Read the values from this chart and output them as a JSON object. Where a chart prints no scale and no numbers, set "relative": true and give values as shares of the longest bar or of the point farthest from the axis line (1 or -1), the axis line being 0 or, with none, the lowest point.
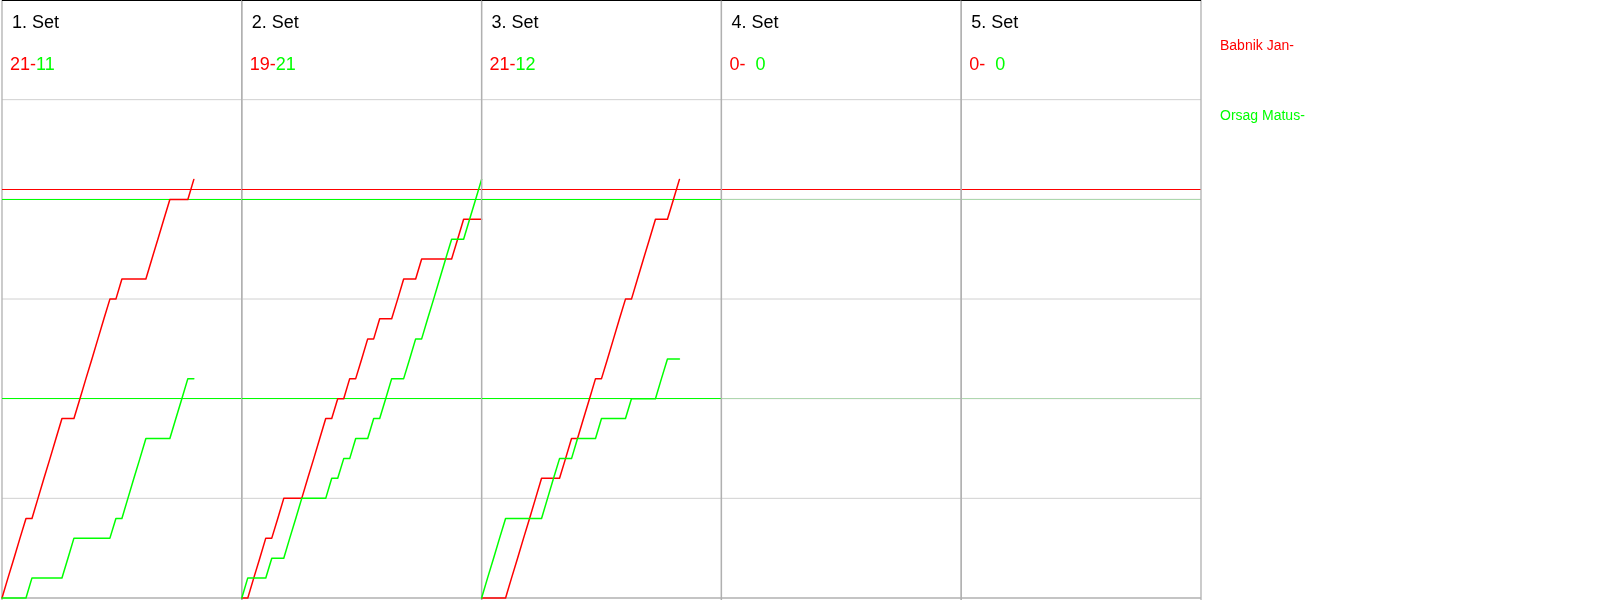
{
  "chart_data": [
    {
      "type": "line",
      "title": "1. Set",
      "subtitle": "21-11",
      "relative": true,
      "grid": "y",
      "line_style": "solid",
      "categories": [
        null,
        null,
        null,
        null,
        null,
        null,
        null,
        null,
        null,
        null,
        null,
        null,
        null,
        null,
        null,
        null,
        null,
        null,
        null,
        null,
        null,
        null,
        null,
        null,
        null,
        null,
        null,
        null,
        null,
        null,
        null,
        null,
        null,
        null,
        null,
        null,
        null,
        null,
        null,
        null,
        null
      ],
      "ref_lines": [
        {
          "axis": "y",
          "value": 0.976,
          "color": "#ff0000"
        },
        {
          "axis": "y",
          "value": 0.952,
          "color": "#00ff00"
        },
        {
          "axis": "y",
          "value": 0.476,
          "color": "#00ff00"
        }
      ],
      "series": [
        {
          "name": "Babnik Jan-",
          "color": "#ff0000",
          "values": [
            0,
            0.048,
            0.095,
            0.143,
            0.19,
            0.19,
            0.238,
            0.286,
            0.333,
            0.381,
            0.429,
            0.429,
            0.429,
            0.476,
            0.524,
            0.571,
            0.619,
            0.667,
            0.714,
            0.714,
            0.762,
            0.762,
            0.762,
            0.762,
            0.762,
            0.81,
            0.857,
            0.905,
            0.952,
            0.952,
            0.952,
            0.952,
            1,
            null,
            null,
            null,
            null,
            null,
            null,
            null,
            null
          ]
        },
        {
          "name": "Orsag Matus-",
          "color": "#00ff00",
          "values": [
            0,
            0,
            0,
            0,
            0,
            0.048,
            0.048,
            0.048,
            0.048,
            0.048,
            0.048,
            0.095,
            0.143,
            0.143,
            0.143,
            0.143,
            0.143,
            0.143,
            0.143,
            0.19,
            0.19,
            0.238,
            0.286,
            0.333,
            0.381,
            0.381,
            0.381,
            0.381,
            0.381,
            0.429,
            0.476,
            0.524,
            0.524,
            null,
            null,
            null,
            null,
            null,
            null,
            null,
            null
          ]
        }
      ]
    },
    {
      "type": "line",
      "title": "2. Set",
      "subtitle": "19-21",
      "relative": true,
      "grid": "y",
      "line_style": "solid",
      "categories": [
        null,
        null,
        null,
        null,
        null,
        null,
        null,
        null,
        null,
        null,
        null,
        null,
        null,
        null,
        null,
        null,
        null,
        null,
        null,
        null,
        null,
        null,
        null,
        null,
        null,
        null,
        null,
        null,
        null,
        null,
        null,
        null,
        null,
        null,
        null,
        null,
        null,
        null,
        null,
        null,
        null
      ],
      "ref_lines": [
        {
          "axis": "y",
          "value": 0.976,
          "color": "#ff0000"
        },
        {
          "axis": "y",
          "value": 0.952,
          "color": "#00ff00"
        },
        {
          "axis": "y",
          "value": 0.476,
          "color": "#00ff00"
        }
      ],
      "series": [
        {
          "color": "#ff0000",
          "values": [
            0,
            0,
            0.048,
            0.095,
            0.143,
            0.143,
            0.19,
            0.238,
            0.238,
            0.238,
            0.238,
            0.286,
            0.333,
            0.381,
            0.429,
            0.429,
            0.476,
            0.476,
            0.524,
            0.524,
            0.571,
            0.619,
            0.619,
            0.667,
            0.667,
            0.667,
            0.714,
            0.762,
            0.762,
            0.762,
            0.81,
            0.81,
            0.81,
            0.81,
            0.81,
            0.81,
            0.857,
            0.905,
            0.905,
            0.905,
            0.905
          ]
        },
        {
          "color": "#00ff00",
          "values": [
            0,
            0.048,
            0.048,
            0.048,
            0.048,
            0.095,
            0.095,
            0.095,
            0.143,
            0.19,
            0.238,
            0.238,
            0.238,
            0.238,
            0.238,
            0.286,
            0.286,
            0.333,
            0.333,
            0.381,
            0.381,
            0.381,
            0.429,
            0.429,
            0.476,
            0.524,
            0.524,
            0.524,
            0.571,
            0.619,
            0.619,
            0.667,
            0.714,
            0.762,
            0.81,
            0.857,
            0.857,
            0.857,
            0.905,
            0.952,
            1
          ]
        }
      ]
    },
    {
      "type": "line",
      "title": "3. Set",
      "subtitle": "21-12",
      "relative": true,
      "grid": "y",
      "line_style": "solid",
      "categories": [
        null,
        null,
        null,
        null,
        null,
        null,
        null,
        null,
        null,
        null,
        null,
        null,
        null,
        null,
        null,
        null,
        null,
        null,
        null,
        null,
        null,
        null,
        null,
        null,
        null,
        null,
        null,
        null,
        null,
        null,
        null,
        null,
        null,
        null,
        null,
        null,
        null,
        null,
        null,
        null,
        null
      ],
      "ref_lines": [
        {
          "axis": "y",
          "value": 0.976,
          "color": "#ff0000"
        },
        {
          "axis": "y",
          "value": 0.952,
          "color": "#00ff00"
        },
        {
          "axis": "y",
          "value": 0.476,
          "color": "#00ff00"
        }
      ],
      "series": [
        {
          "color": "#ff0000",
          "values": [
            0,
            0,
            0,
            0,
            0,
            0.048,
            0.095,
            0.143,
            0.19,
            0.238,
            0.286,
            0.286,
            0.286,
            0.286,
            0.333,
            0.381,
            0.381,
            0.429,
            0.476,
            0.524,
            0.524,
            0.571,
            0.619,
            0.667,
            0.714,
            0.714,
            0.762,
            0.81,
            0.857,
            0.905,
            0.905,
            0.905,
            0.952,
            1,
            null,
            null,
            null,
            null,
            null,
            null,
            null
          ]
        },
        {
          "color": "#00ff00",
          "values": [
            0,
            0.048,
            0.095,
            0.143,
            0.19,
            0.19,
            0.19,
            0.19,
            0.19,
            0.19,
            0.19,
            0.238,
            0.286,
            0.333,
            0.333,
            0.333,
            0.381,
            0.381,
            0.381,
            0.381,
            0.429,
            0.429,
            0.429,
            0.429,
            0.429,
            0.476,
            0.476,
            0.476,
            0.476,
            0.476,
            0.524,
            0.571,
            0.571,
            0.571,
            null,
            null,
            null,
            null,
            null,
            null,
            null
          ]
        }
      ]
    },
    {
      "type": "other",
      "title": "4. Set",
      "subtitle": "0-  0"
    },
    {
      "type": "other",
      "title": "5. Set",
      "subtitle": "0-  0"
    }
  ]
}
